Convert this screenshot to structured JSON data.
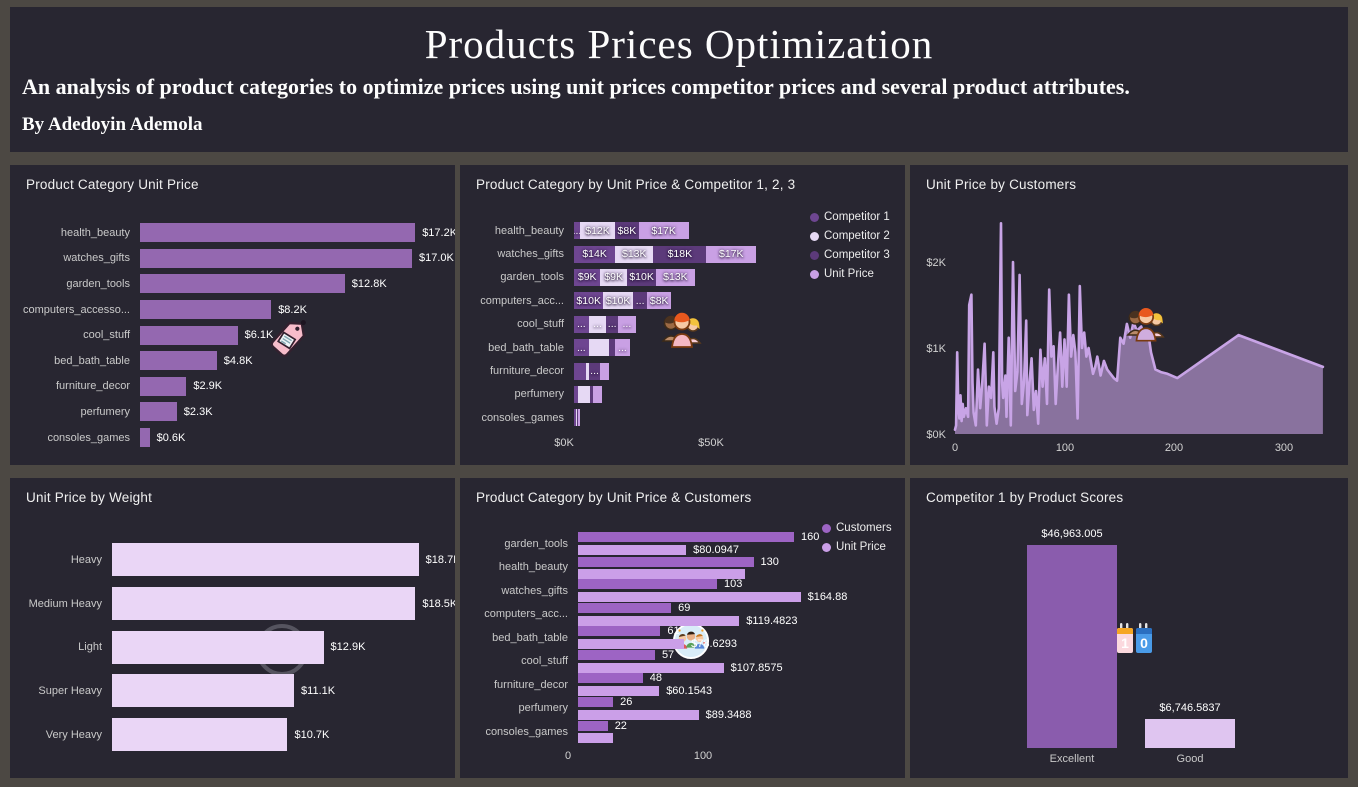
{
  "header": {
    "title": "Products Prices Optimization",
    "subtitle": "An analysis of product categories to optimize prices using unit prices competitor prices and several product attributes.",
    "byline": "By Adedoyin Ademola"
  },
  "colors": {
    "frame": "#4c4843",
    "panel_bg": "#282631",
    "text": "#ffffff",
    "axis_text": "#c9c9c9",
    "bar_purple": "#9468b0",
    "bar_light_lavender": "#ead6f6",
    "line_purple": "#c8a4e6",
    "area_fill": "rgba(197,162,226,0.62)",
    "competitor1": "#6e4691",
    "competitor2": "#e6d9f4",
    "competitor3": "#5c3a7a",
    "unit_price": "#c9a0e4",
    "customers": "#9d64c4",
    "excellent_bar": "#8a5cad",
    "good_bar": "#dfc5f0"
  },
  "chart_data": [
    {
      "panel": "product-category-unit-price",
      "type": "bar",
      "orientation": "horizontal",
      "title": "Product Category Unit Price",
      "icon": "price-tag-icon",
      "categories": [
        "health_beauty",
        "watches_gifts",
        "garden_tools",
        "computers_accesso...",
        "cool_stuff",
        "bed_bath_table",
        "furniture_decor",
        "perfumery",
        "consoles_games"
      ],
      "values": [
        17.2,
        17.0,
        12.8,
        8.2,
        6.1,
        4.8,
        2.9,
        2.3,
        0.6
      ],
      "value_labels": [
        "$17.2K",
        "$17.0K",
        "$12.8K",
        "$8.2K",
        "$6.1K",
        "$4.8K",
        "$2.9K",
        "$2.3K",
        "$0.6K"
      ],
      "bar_color": "#9468b0",
      "xlabel": "",
      "ylabel": "",
      "xlim_k": [
        0,
        19
      ]
    },
    {
      "panel": "product-category-by-unit-price-and-competitors",
      "type": "stacked-bar",
      "orientation": "horizontal",
      "title": "Product Category by Unit Price & Competitor 1, 2, 3",
      "icon": "people-group-icon",
      "series": [
        "Competitor 1",
        "Competitor 2",
        "Competitor 3",
        "Unit Price"
      ],
      "series_colors": [
        "#6e4691",
        "#e6d9f4",
        "#5c3a7a",
        "#c9a0e4"
      ],
      "legend_position": "right",
      "categories": [
        "health_beauty",
        "watches_gifts",
        "garden_tools",
        "computers_acc...",
        "cool_stuff",
        "bed_bath_table",
        "furniture_decor",
        "perfumery",
        "consoles_games"
      ],
      "segments": [
        [
          {
            "label": "...",
            "value": 2
          },
          {
            "label": "$12K",
            "value": 12
          },
          {
            "label": "$8K",
            "value": 8
          },
          {
            "label": "$17K",
            "value": 17
          }
        ],
        [
          {
            "label": "$14K",
            "value": 14
          },
          {
            "label": "$13K",
            "value": 13
          },
          {
            "label": "$18K",
            "value": 18
          },
          {
            "label": "$17K",
            "value": 17
          }
        ],
        [
          {
            "label": "$9K",
            "value": 9
          },
          {
            "label": "$9K",
            "value": 9
          },
          {
            "label": "$10K",
            "value": 10
          },
          {
            "label": "$13K",
            "value": 13
          }
        ],
        [
          {
            "label": "$10K",
            "value": 10
          },
          {
            "label": "$10K",
            "value": 10
          },
          {
            "label": "...",
            "value": 5
          },
          {
            "label": "$8K",
            "value": 8
          }
        ],
        [
          {
            "label": "...",
            "value": 5
          },
          {
            "label": "...",
            "value": 6
          },
          {
            "label": "...",
            "value": 4
          },
          {
            "label": "...",
            "value": 6
          }
        ],
        [
          {
            "label": "...",
            "value": 5
          },
          {
            "label": "",
            "value": 7
          },
          {
            "label": "",
            "value": 2
          },
          {
            "label": "...",
            "value": 5
          }
        ],
        [
          {
            "label": "",
            "value": 4
          },
          {
            "label": "",
            "value": 1
          },
          {
            "label": "...",
            "value": 4
          },
          {
            "label": "",
            "value": 3
          }
        ],
        [
          {
            "label": "",
            "value": 1.5
          },
          {
            "label": "",
            "value": 4
          },
          {
            "label": "",
            "value": 1
          },
          {
            "label": "",
            "value": 3
          }
        ],
        [
          {
            "label": "",
            "value": 0.7
          },
          {
            "label": "",
            "value": 0.3
          },
          {
            "label": "",
            "value": 0.2
          },
          {
            "label": "",
            "value": 0.8
          }
        ]
      ],
      "x_ticks": [
        "$0K",
        "$50K"
      ],
      "x_tick_values_k": [
        0,
        50
      ],
      "xlim_k": [
        0,
        62
      ]
    },
    {
      "panel": "unit-price-by-customers",
      "type": "area",
      "title": "Unit Price by Customers",
      "icon": "people-group-icon",
      "y_ticks": [
        {
          "v": 0,
          "label": "$0K"
        },
        {
          "v": 1,
          "label": "$1K"
        },
        {
          "v": 2,
          "label": "$2K"
        }
      ],
      "x_ticks": [
        {
          "v": 0,
          "label": "0"
        },
        {
          "v": 100,
          "label": "100"
        },
        {
          "v": 200,
          "label": "200"
        },
        {
          "v": 300,
          "label": "300"
        }
      ],
      "xlim": [
        0,
        340
      ],
      "ylim_k": [
        0,
        2.6
      ],
      "points": [
        [
          0,
          0.05
        ],
        [
          1,
          0.1
        ],
        [
          2,
          0.95
        ],
        [
          3,
          0.3
        ],
        [
          4,
          0.18
        ],
        [
          5,
          0.45
        ],
        [
          6,
          0.15
        ],
        [
          7,
          0.35
        ],
        [
          8,
          0.2
        ],
        [
          10,
          0.3
        ],
        [
          12,
          0.2
        ],
        [
          13,
          1.5
        ],
        [
          15,
          1.62
        ],
        [
          16,
          0.6
        ],
        [
          17,
          0.25
        ],
        [
          19,
          0.1
        ],
        [
          21,
          0.75
        ],
        [
          23,
          0.3
        ],
        [
          25,
          0.62
        ],
        [
          27,
          1.05
        ],
        [
          28,
          0.6
        ],
        [
          29,
          0.1
        ],
        [
          31,
          0.55
        ],
        [
          33,
          0.42
        ],
        [
          35,
          0.95
        ],
        [
          36,
          0.32
        ],
        [
          38,
          0.12
        ],
        [
          40,
          0.3
        ],
        [
          42,
          2.45
        ],
        [
          43,
          0.6
        ],
        [
          44,
          0.42
        ],
        [
          46,
          0.68
        ],
        [
          47,
          0.2
        ],
        [
          49,
          1.12
        ],
        [
          51,
          0.1
        ],
        [
          53,
          2.0
        ],
        [
          55,
          0.5
        ],
        [
          57,
          0.72
        ],
        [
          59,
          1.85
        ],
        [
          61,
          0.35
        ],
        [
          63,
          0.6
        ],
        [
          65,
          1.32
        ],
        [
          66,
          0.22
        ],
        [
          68,
          0.6
        ],
        [
          70,
          0.88
        ],
        [
          72,
          0.28
        ],
        [
          74,
          0.5
        ],
        [
          76,
          0.12
        ],
        [
          78,
          0.98
        ],
        [
          80,
          0.55
        ],
        [
          82,
          0.88
        ],
        [
          84,
          0.35
        ],
        [
          86,
          1.68
        ],
        [
          88,
          0.9
        ],
        [
          90,
          1.02
        ],
        [
          92,
          0.35
        ],
        [
          94,
          0.8
        ],
        [
          96,
          1.18
        ],
        [
          98,
          0.55
        ],
        [
          100,
          1.1
        ],
        [
          102,
          0.55
        ],
        [
          104,
          1.62
        ],
        [
          106,
          0.9
        ],
        [
          108,
          1.15
        ],
        [
          110,
          0.95
        ],
        [
          112,
          0.18
        ],
        [
          114,
          1.72
        ],
        [
          116,
          1.0
        ],
        [
          118,
          1.18
        ],
        [
          120,
          0.9
        ],
        [
          122,
          1.0
        ],
        [
          124,
          0.85
        ],
        [
          126,
          0.7
        ],
        [
          128,
          0.78
        ],
        [
          130,
          0.9
        ],
        [
          133,
          0.68
        ],
        [
          136,
          0.85
        ],
        [
          139,
          0.75
        ],
        [
          142,
          0.7
        ],
        [
          145,
          0.65
        ],
        [
          148,
          0.62
        ],
        [
          151,
          1.12
        ],
        [
          154,
          1.05
        ],
        [
          157,
          1.28
        ],
        [
          160,
          1.12
        ],
        [
          163,
          1.3
        ],
        [
          166,
          1.2
        ],
        [
          170,
          1.25
        ],
        [
          173,
          1.1
        ],
        [
          176,
          1.22
        ],
        [
          179,
          0.95
        ],
        [
          183,
          0.75
        ],
        [
          188,
          0.72
        ],
        [
          194,
          0.7
        ],
        [
          203,
          0.65
        ],
        [
          259,
          1.15
        ],
        [
          336,
          0.78
        ]
      ]
    },
    {
      "panel": "unit-price-by-weight",
      "type": "bar",
      "orientation": "horizontal",
      "title": "Unit Price by Weight",
      "icon": "circle-watermark-icon",
      "categories": [
        "Heavy",
        "Medium Heavy",
        "Light",
        "Super Heavy",
        "Very Heavy"
      ],
      "values": [
        18.7,
        18.5,
        12.9,
        11.1,
        10.7
      ],
      "value_labels": [
        "$18.7K",
        "$18.5K",
        "$12.9K",
        "$11.1K",
        "$10.7K"
      ],
      "bar_color": "#ead6f6",
      "xlim_k": [
        0,
        20
      ]
    },
    {
      "panel": "product-category-by-unit-price-and-customers",
      "type": "grouped-bar",
      "orientation": "horizontal",
      "title": "Product Category by Unit Price & Customers",
      "icon": "children-group-icon",
      "series": [
        "Customers",
        "Unit Price"
      ],
      "series_colors": [
        "#9d64c4",
        "#cb9fe8"
      ],
      "legend_position": "right",
      "categories": [
        "garden_tools",
        "health_beauty",
        "watches_gifts",
        "computers_acc...",
        "bed_bath_table",
        "cool_stuff",
        "furniture_decor",
        "perfumery",
        "consoles_games"
      ],
      "customers_values": [
        160,
        130,
        103,
        69,
        61,
        57,
        48,
        26,
        22
      ],
      "customers_labels": [
        "160",
        "130",
        "103",
        "69",
        "61",
        "57",
        "48",
        "26",
        "22"
      ],
      "unit_price_values": [
        80.09,
        124,
        164.88,
        119.48,
        78.63,
        107.86,
        60.15,
        89.35,
        26
      ],
      "unit_price_labels": [
        "$80.0947",
        "",
        "$164.88",
        "$119.4823",
        "$78.6293",
        "$107.8575",
        "$60.1543",
        "$89.3488",
        ""
      ],
      "x_ticks": [
        "0",
        "100"
      ],
      "x_tick_values": [
        0,
        100
      ],
      "xlim": [
        0,
        175
      ]
    },
    {
      "panel": "competitor-1-by-product-scores",
      "type": "bar",
      "orientation": "vertical",
      "title": "Competitor 1 by Product Scores",
      "icon": "calendar-icon",
      "categories": [
        "Excellent",
        "Good"
      ],
      "values": [
        46963.005,
        6746.5837
      ],
      "value_labels": [
        "$46,963.005",
        "$6,746.5837"
      ],
      "bar_colors": [
        "#8a5cad",
        "#dfc5f0"
      ],
      "ylim": [
        0,
        50000
      ]
    }
  ]
}
